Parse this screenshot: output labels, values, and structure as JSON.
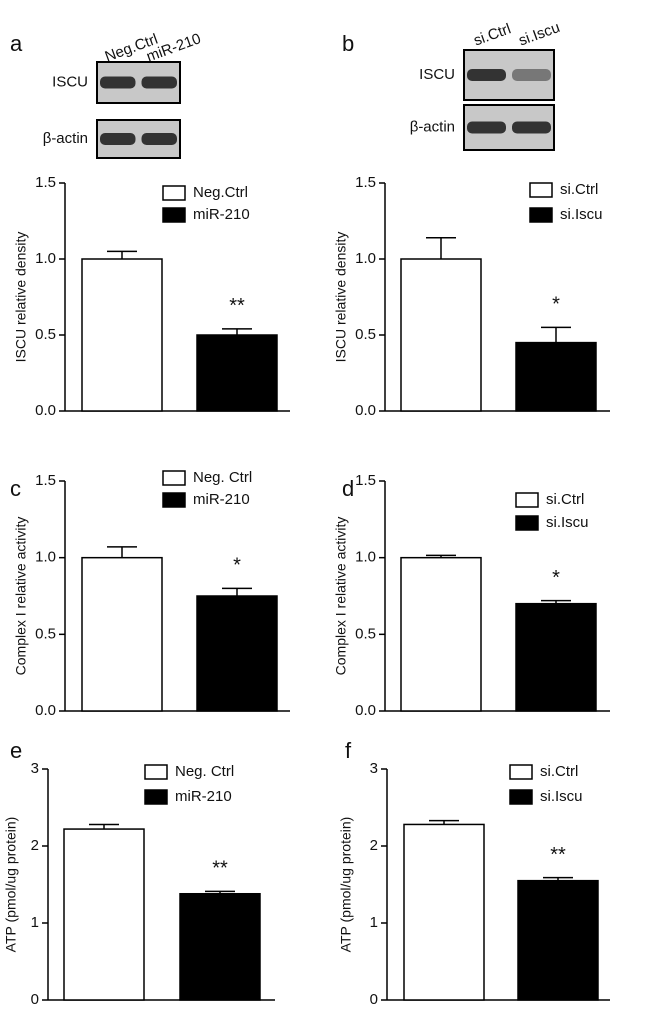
{
  "blots": [
    {
      "lanes": [
        "Neg.Ctrl",
        "miR-210"
      ],
      "rows": [
        "ISCU",
        "β-actin"
      ]
    },
    {
      "lanes": [
        "si.Ctrl",
        "si.Iscu"
      ],
      "rows": [
        "ISCU",
        "β-actin"
      ]
    }
  ],
  "chart_data": [
    {
      "type": "bar",
      "panel": "a",
      "ylabel": "ISCU relative density",
      "ylim": [
        0,
        1.5
      ],
      "yticks": [
        {
          "value": 0,
          "label": "0.0"
        },
        {
          "value": 0.5,
          "label": "0.5"
        },
        {
          "value": 1,
          "label": "1.0"
        },
        {
          "value": 1.5,
          "label": "1.5"
        }
      ],
      "series": [
        {
          "name": "Neg.Ctrl",
          "color": "#ffffff",
          "values": [
            1.0
          ],
          "errors": [
            0.05
          ]
        },
        {
          "name": "miR-210",
          "color": "#000000",
          "values": [
            0.5
          ],
          "errors": [
            0.04
          ]
        }
      ],
      "annotation": "**"
    },
    {
      "type": "bar",
      "panel": "b",
      "ylabel": "ISCU relative density",
      "ylim": [
        0,
        1.5
      ],
      "yticks": [
        {
          "value": 0,
          "label": "0.0"
        },
        {
          "value": 0.5,
          "label": "0.5"
        },
        {
          "value": 1,
          "label": "1.0"
        },
        {
          "value": 1.5,
          "label": "1.5"
        }
      ],
      "series": [
        {
          "name": "si.Ctrl",
          "color": "#ffffff",
          "values": [
            1.0
          ],
          "errors": [
            0.14
          ]
        },
        {
          "name": "si.Iscu",
          "color": "#000000",
          "values": [
            0.45
          ],
          "errors": [
            0.1
          ]
        }
      ],
      "annotation": "*"
    },
    {
      "type": "bar",
      "panel": "c",
      "ylabel": "Complex I relative activity",
      "ylim": [
        0,
        1.5
      ],
      "yticks": [
        {
          "value": 0,
          "label": "0.0"
        },
        {
          "value": 0.5,
          "label": "0.5"
        },
        {
          "value": 1,
          "label": "1.0"
        },
        {
          "value": 1.5,
          "label": "1.5"
        }
      ],
      "series": [
        {
          "name": "Neg. Ctrl",
          "color": "#ffffff",
          "values": [
            1.0
          ],
          "errors": [
            0.07
          ]
        },
        {
          "name": "miR-210",
          "color": "#000000",
          "values": [
            0.75
          ],
          "errors": [
            0.05
          ]
        }
      ],
      "annotation": "*"
    },
    {
      "type": "bar",
      "panel": "d",
      "ylabel": "Complex I relative activity",
      "ylim": [
        0,
        1.5
      ],
      "yticks": [
        {
          "value": 0,
          "label": "0.0"
        },
        {
          "value": 0.5,
          "label": "0.5"
        },
        {
          "value": 1,
          "label": "1.0"
        },
        {
          "value": 1.5,
          "label": "1.5"
        }
      ],
      "series": [
        {
          "name": "si.Ctrl",
          "color": "#ffffff",
          "values": [
            1.0
          ],
          "errors": [
            0.015
          ]
        },
        {
          "name": "si.Iscu",
          "color": "#000000",
          "values": [
            0.7
          ],
          "errors": [
            0.02
          ]
        }
      ],
      "annotation": "*"
    },
    {
      "type": "bar",
      "panel": "e",
      "ylabel": "ATP (pmol/ug protein)",
      "ylim": [
        0,
        3
      ],
      "yticks": [
        0,
        1,
        2,
        3
      ],
      "series": [
        {
          "name": "Neg. Ctrl",
          "color": "#ffffff",
          "values": [
            2.22
          ],
          "errors": [
            0.06
          ]
        },
        {
          "name": "miR-210",
          "color": "#000000",
          "values": [
            1.38
          ],
          "errors": [
            0.03
          ]
        }
      ],
      "annotation": "**"
    },
    {
      "type": "bar",
      "panel": "f",
      "ylabel": "ATP (pmol/ug protein)",
      "ylim": [
        0,
        3
      ],
      "yticks": [
        0,
        1,
        2,
        3
      ],
      "series": [
        {
          "name": "si.Ctrl",
          "color": "#ffffff",
          "values": [
            2.28
          ],
          "errors": [
            0.05
          ]
        },
        {
          "name": "si.Iscu",
          "color": "#000000",
          "values": [
            1.55
          ],
          "errors": [
            0.04
          ]
        }
      ],
      "annotation": "**"
    }
  ]
}
